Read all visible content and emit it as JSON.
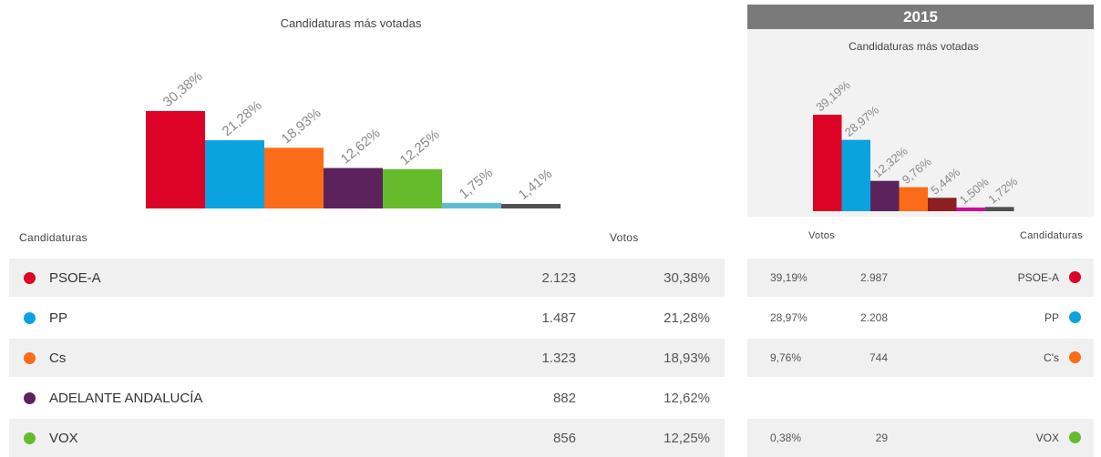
{
  "left": {
    "title": "Candidaturas más votadas",
    "table_headers": {
      "candidates": "Candidaturas",
      "votes": "Votos"
    },
    "rows": [
      {
        "name": "PSOE-A",
        "votes": "2.123",
        "pct": "30,38%",
        "color": "#dc0326"
      },
      {
        "name": "PP",
        "votes": "1.487",
        "pct": "21,28%",
        "color": "#0aa2df"
      },
      {
        "name": "Cs",
        "votes": "1.323",
        "pct": "18,93%",
        "color": "#fa6c17"
      },
      {
        "name": "ADELANTE ANDALUCÍA",
        "votes": "882",
        "pct": "12,62%",
        "color": "#5c225c"
      },
      {
        "name": "VOX",
        "votes": "856",
        "pct": "12,25%",
        "color": "#66bb2d"
      }
    ]
  },
  "right": {
    "year": "2015",
    "title": "Candidaturas más votadas",
    "table_headers": {
      "votes": "Votos",
      "candidates": "Candidaturas"
    },
    "rows": [
      {
        "pct": "39,19%",
        "votes": "2.987",
        "name": "PSOE-A",
        "color": "#dc0326"
      },
      {
        "pct": "28,97%",
        "votes": "2.208",
        "name": "PP",
        "color": "#0aa2df"
      },
      {
        "pct": "9,76%",
        "votes": "744",
        "name": "C's",
        "color": "#fa6c17"
      },
      {
        "pct": "",
        "votes": "",
        "name": "",
        "color": ""
      },
      {
        "pct": "0,38%",
        "votes": "29",
        "name": "VOX",
        "color": "#66bb2d"
      }
    ]
  },
  "chart_data": [
    {
      "type": "bar",
      "title": "Candidaturas más votadas",
      "values": [
        30.38,
        21.28,
        18.93,
        12.62,
        12.25,
        1.75,
        1.41
      ],
      "labels": [
        "30,38%",
        "21,28%",
        "18,93%",
        "12,62%",
        "12,25%",
        "1,75%",
        "1,41%"
      ],
      "colors": [
        "#dc0326",
        "#0aa2df",
        "#fa6c17",
        "#5c225c",
        "#66bb2d",
        "#5fbcd3",
        "#505050"
      ],
      "ylim": [
        0,
        30.38
      ]
    },
    {
      "type": "bar",
      "title": "Candidaturas más votadas",
      "values": [
        39.19,
        28.97,
        12.32,
        9.76,
        5.44,
        1.5,
        1.72
      ],
      "labels": [
        "39,19%",
        "28,97%",
        "12,32%",
        "9,76%",
        "5,44%",
        "1,50%",
        "1,72%"
      ],
      "colors": [
        "#dc0326",
        "#0aa2df",
        "#5c225c",
        "#fa6c17",
        "#8b1f24",
        "#cc0e9b",
        "#505050"
      ],
      "ylim": [
        0,
        39.19
      ]
    }
  ]
}
